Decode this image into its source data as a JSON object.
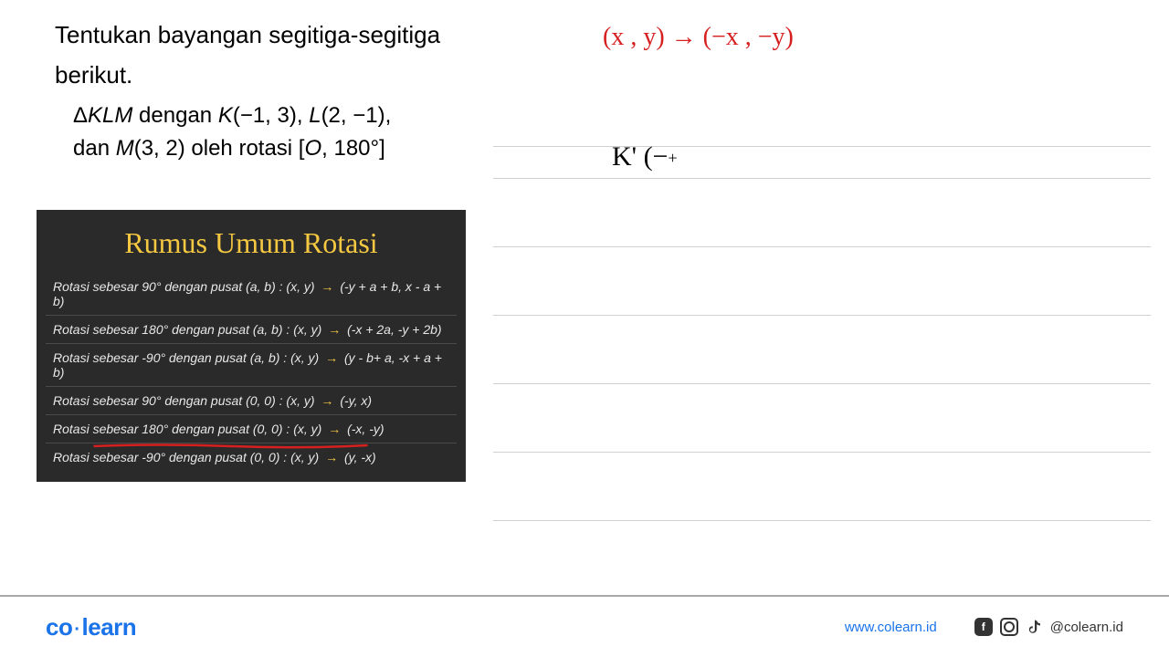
{
  "question": {
    "line1": "Tentukan bayangan segitiga-segitiga",
    "line2": "berikut.",
    "detail_line1_prefix": "Δ",
    "detail_line1_math1": "KLM",
    "detail_line1_text1": " dengan ",
    "detail_line1_math2": "K",
    "detail_line1_text2": "(−1, 3), ",
    "detail_line1_math3": "L",
    "detail_line1_text3": "(2, −1),",
    "detail_line2_text1": "dan ",
    "detail_line2_math1": "M",
    "detail_line2_text2": "(3, 2) oleh rotasi [",
    "detail_line2_math2": "O",
    "detail_line2_text3": ", 180°]"
  },
  "handwriting": {
    "red_formula": "(x , y) → (−x , −y)",
    "k_prime": "K' (−",
    "cursor": "+"
  },
  "formula_card": {
    "title": "Rumus Umum Rotasi",
    "title_color": "#f5c842",
    "bg_color": "#2a2a2a",
    "text_color": "#e8e8e8",
    "arrow_color": "#f5c842",
    "rows": [
      {
        "prefix": "Rotasi sebesar 90° dengan pusat (a, b) : ",
        "from": "(x, y)",
        "to": "(-y + a + b, x - a + b)"
      },
      {
        "prefix": "Rotasi sebesar 180° dengan pusat (a, b) : ",
        "from": "(x, y)",
        "to": "(-x + 2a, -y + 2b)"
      },
      {
        "prefix": "Rotasi sebesar -90° dengan pusat (a, b) : ",
        "from": "(x, y)",
        "to": "(y - b+ a, -x + a + b)"
      },
      {
        "prefix": "Rotasi sebesar 90° dengan pusat (0, 0) : ",
        "from": "(x, y)",
        "to": "(-y, x)"
      },
      {
        "prefix": "Rotasi sebesar 180° dengan pusat (0, 0) : ",
        "from": "(x, y)",
        "to": "(-x, -y)",
        "underlined": true
      },
      {
        "prefix": "Rotasi sebesar -90° dengan pusat (0, 0) : ",
        "from": "(x, y)",
        "to": "(y, -x)"
      }
    ],
    "underline_color": "#d62020"
  },
  "ruled_lines": {
    "color": "#d0d0d0",
    "positions": [
      20,
      55,
      130,
      205,
      280,
      355,
      430
    ]
  },
  "footer": {
    "logo_text_1": "co",
    "logo_dot": "·",
    "logo_text_2": "learn",
    "logo_color": "#1a73e8",
    "website": "www.colearn.id",
    "handle": "@colearn.id",
    "icon_color": "#333333"
  },
  "colors": {
    "red": "#d62020",
    "black": "#000000",
    "background": "#ffffff"
  }
}
